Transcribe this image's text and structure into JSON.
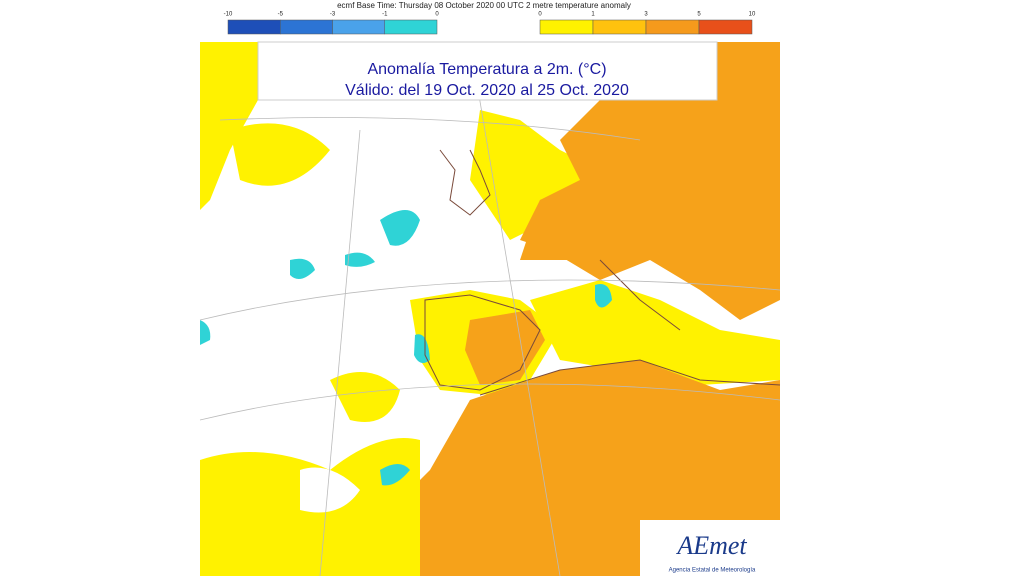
{
  "header": {
    "text": "ecmf  Base Time: Thursday 08 October 2020 00 UTC 2 metre temperature anomaly"
  },
  "legend": {
    "cold": {
      "ticks": [
        -10,
        -5,
        -3,
        -1,
        0
      ],
      "colors": [
        "#1e4fb8",
        "#2c74d4",
        "#4aa2ea",
        "#2fd3d6"
      ]
    },
    "warm": {
      "ticks": [
        0,
        1,
        3,
        5,
        10
      ],
      "colors": [
        "#fff200",
        "#ffc20e",
        "#f59a1c",
        "#e8501a"
      ]
    }
  },
  "map": {
    "title": "Anomalía Temperatura a 2m. (°C)",
    "subtitle": "Válido: del 19 Oct. 2020 al 25 Oct. 2020"
  },
  "logo": {
    "name": "AEmet",
    "caption": "Agencia Estatal de Meteorología"
  }
}
